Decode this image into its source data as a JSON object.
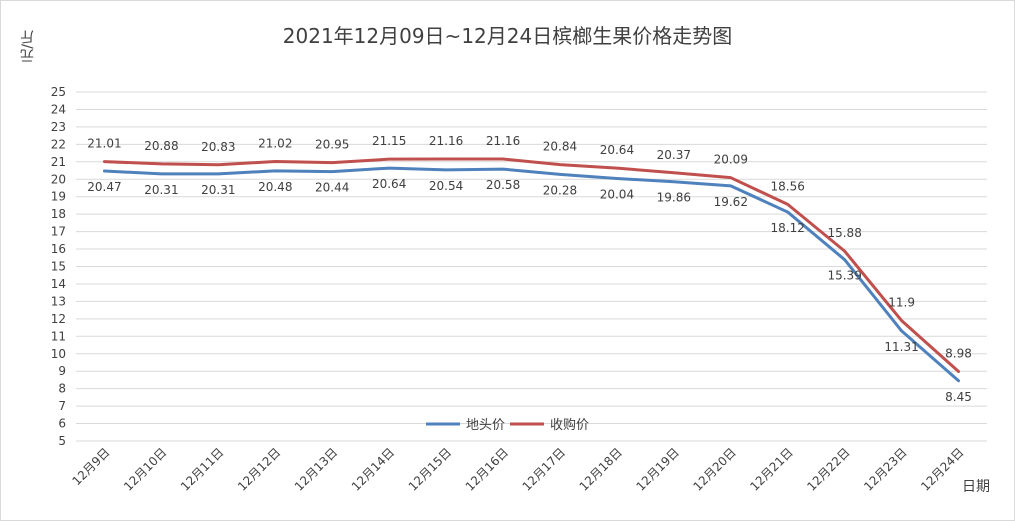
{
  "chart_data": {
    "type": "line",
    "title": "2021年12月09日~12月24日槟榔生果价格走势图",
    "ylabel": "元/斤",
    "xlabel": "日期",
    "categories": [
      "12月9日",
      "12月10日",
      "12月11日",
      "12月12日",
      "12月13日",
      "12月14日",
      "12月15日",
      "12月16日",
      "12月17日",
      "12月18日",
      "12月19日",
      "12月20日",
      "12月21日",
      "12月22日",
      "12月23日",
      "12月24日"
    ],
    "ylim": [
      5,
      25
    ],
    "yticks": [
      5,
      6,
      7,
      8,
      9,
      10,
      11,
      12,
      13,
      14,
      15,
      16,
      17,
      18,
      19,
      20,
      21,
      22,
      23,
      24,
      25
    ],
    "grid": true,
    "legend_position": "bottom-center",
    "series": [
      {
        "name": "地头价",
        "color": "#4f81bd",
        "label_side": "below",
        "values": [
          20.47,
          20.31,
          20.31,
          20.48,
          20.44,
          20.64,
          20.54,
          20.58,
          20.28,
          20.04,
          19.86,
          19.62,
          18.12,
          15.39,
          11.31,
          8.45
        ]
      },
      {
        "name": "收购价",
        "color": "#c0504d",
        "label_side": "above",
        "values": [
          21.01,
          20.88,
          20.83,
          21.02,
          20.95,
          21.15,
          21.16,
          21.16,
          20.84,
          20.64,
          20.37,
          20.09,
          18.56,
          15.88,
          11.9,
          8.98
        ]
      }
    ]
  }
}
